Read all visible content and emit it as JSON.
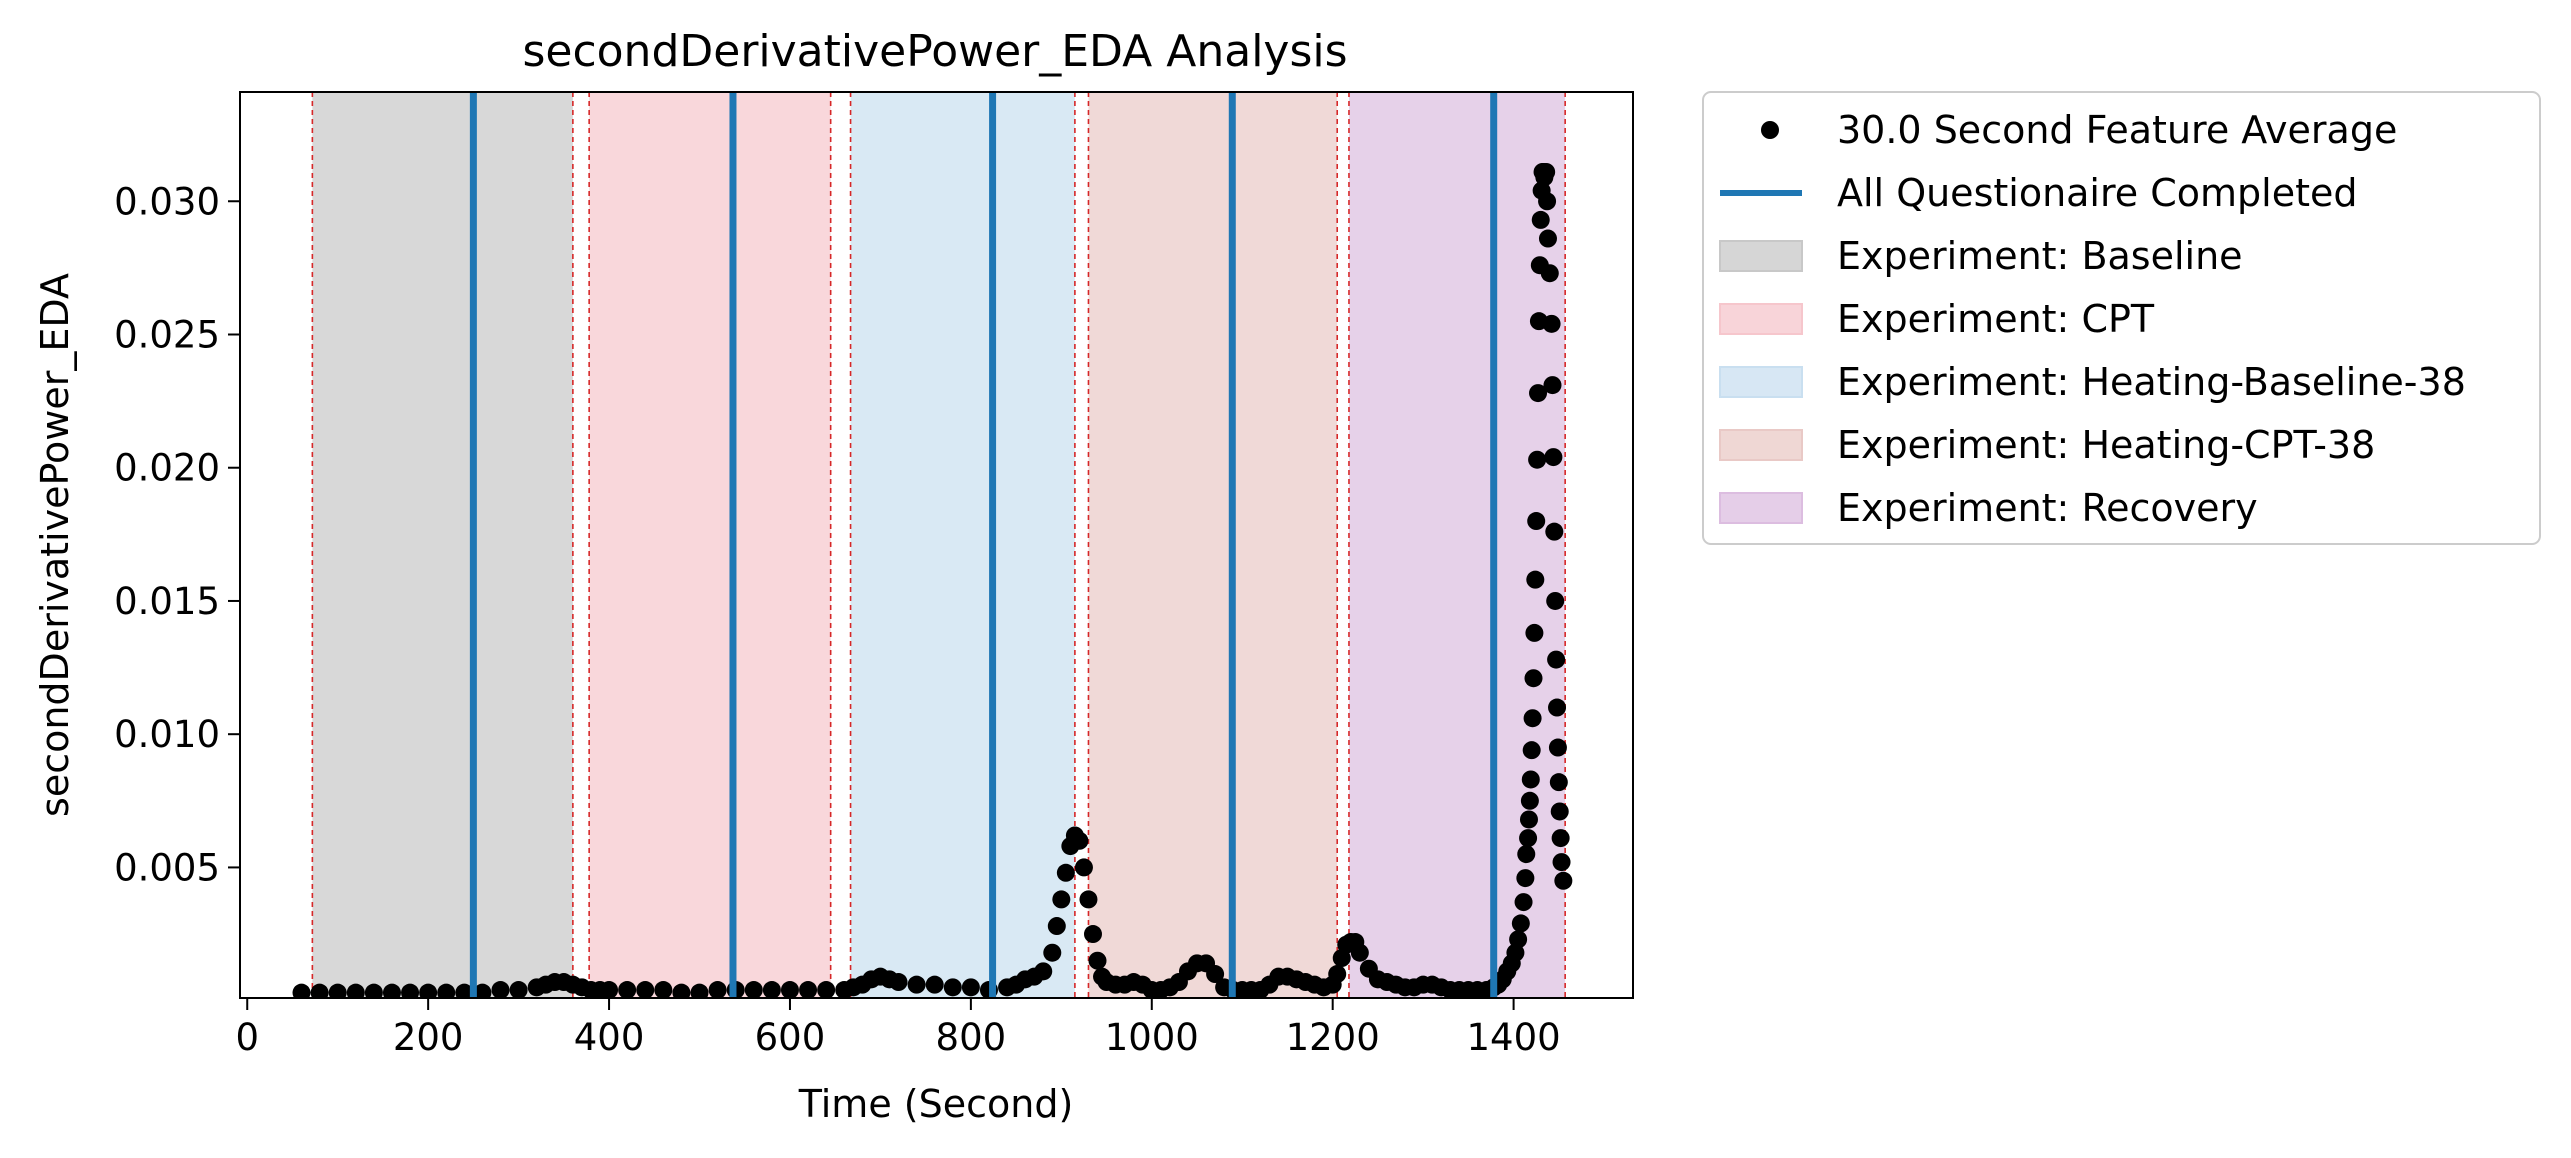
{
  "chart_data": {
    "type": "scatter",
    "title": "secondDerivativePower_EDA Analysis",
    "xlabel": "Time (Second)",
    "ylabel": "secondDerivativePower_EDA",
    "xlim": [
      -8,
      1532
    ],
    "ylim": [
      0.0001,
      0.0341
    ],
    "xticks": [
      0,
      200,
      400,
      600,
      800,
      1000,
      1200,
      1400
    ],
    "yticks": [
      0.005,
      0.01,
      0.015,
      0.02,
      0.025,
      0.03
    ],
    "xtick_labels": [
      "0",
      "200",
      "400",
      "600",
      "800",
      "1000",
      "1200",
      "1400"
    ],
    "ytick_labels": [
      "0.005",
      "0.010",
      "0.015",
      "0.020",
      "0.025",
      "0.030"
    ],
    "grid": false,
    "legend_position": "outside-right-top",
    "legend": [
      {
        "label": "30.0 Second Feature Average",
        "kind": "point",
        "color": "#000000"
      },
      {
        "label": "All Questionaire Completed",
        "kind": "line",
        "color": "#1f77b4"
      },
      {
        "label": "Experiment: Baseline",
        "kind": "patch",
        "color": "#c8c8c8"
      },
      {
        "label": "Experiment: CPT",
        "kind": "patch",
        "color": "#f6c6cc"
      },
      {
        "label": "Experiment: Heating-Baseline-38",
        "kind": "patch",
        "color": "#c9dff0"
      },
      {
        "label": "Experiment: Heating-CPT-38",
        "kind": "patch",
        "color": "#e9c9c6"
      },
      {
        "label": "Experiment: Recovery",
        "kind": "patch",
        "color": "#dcbde0"
      }
    ],
    "phases": [
      {
        "name": "Baseline",
        "start": 72,
        "end": 360,
        "color": "#c8c8c8"
      },
      {
        "name": "CPT",
        "start": 378,
        "end": 645,
        "color": "#f6c6cc"
      },
      {
        "name": "Heating-Baseline-38",
        "start": 667,
        "end": 915,
        "color": "#c9dff0"
      },
      {
        "name": "Heating-CPT-38",
        "start": 930,
        "end": 1205,
        "color": "#e9c9c6"
      },
      {
        "name": "Recovery",
        "start": 1218,
        "end": 1457,
        "color": "#dcbde0"
      }
    ],
    "phase_boundaries": [
      72,
      360,
      378,
      645,
      667,
      915,
      930,
      1205,
      1218,
      1457
    ],
    "questionnaire_completed": [
      250,
      537,
      824,
      1089,
      1378
    ],
    "series": [
      {
        "name": "30.0 Second Feature Average",
        "color": "#000000",
        "points": [
          [
            60,
            0.0003
          ],
          [
            80,
            0.0003
          ],
          [
            100,
            0.0003
          ],
          [
            120,
            0.0003
          ],
          [
            140,
            0.0003
          ],
          [
            160,
            0.0003
          ],
          [
            180,
            0.0003
          ],
          [
            200,
            0.0003
          ],
          [
            220,
            0.0003
          ],
          [
            240,
            0.0003
          ],
          [
            260,
            0.0003
          ],
          [
            280,
            0.0004
          ],
          [
            300,
            0.0004
          ],
          [
            320,
            0.0005
          ],
          [
            330,
            0.0006
          ],
          [
            340,
            0.0007
          ],
          [
            350,
            0.0007
          ],
          [
            360,
            0.0006
          ],
          [
            370,
            0.0005
          ],
          [
            380,
            0.0004
          ],
          [
            390,
            0.0004
          ],
          [
            400,
            0.0004
          ],
          [
            420,
            0.0004
          ],
          [
            440,
            0.0004
          ],
          [
            460,
            0.0004
          ],
          [
            480,
            0.0003
          ],
          [
            500,
            0.0003
          ],
          [
            520,
            0.0004
          ],
          [
            540,
            0.0004
          ],
          [
            560,
            0.0004
          ],
          [
            580,
            0.0004
          ],
          [
            600,
            0.0004
          ],
          [
            620,
            0.0004
          ],
          [
            640,
            0.0004
          ],
          [
            660,
            0.0004
          ],
          [
            670,
            0.0005
          ],
          [
            680,
            0.0006
          ],
          [
            690,
            0.0008
          ],
          [
            700,
            0.0009
          ],
          [
            710,
            0.0008
          ],
          [
            720,
            0.0007
          ],
          [
            740,
            0.0006
          ],
          [
            760,
            0.0006
          ],
          [
            780,
            0.0005
          ],
          [
            800,
            0.0005
          ],
          [
            820,
            0.0004
          ],
          [
            840,
            0.0005
          ],
          [
            850,
            0.0006
          ],
          [
            860,
            0.0008
          ],
          [
            870,
            0.0009
          ],
          [
            880,
            0.0011
          ],
          [
            890,
            0.0018
          ],
          [
            895,
            0.0028
          ],
          [
            900,
            0.0038
          ],
          [
            905,
            0.0048
          ],
          [
            910,
            0.0058
          ],
          [
            915,
            0.0062
          ],
          [
            920,
            0.006
          ],
          [
            925,
            0.005
          ],
          [
            930,
            0.0038
          ],
          [
            935,
            0.0025
          ],
          [
            940,
            0.0015
          ],
          [
            945,
            0.0009
          ],
          [
            950,
            0.0007
          ],
          [
            960,
            0.0006
          ],
          [
            970,
            0.0006
          ],
          [
            980,
            0.0007
          ],
          [
            990,
            0.0006
          ],
          [
            1000,
            0.0004
          ],
          [
            1010,
            0.0004
          ],
          [
            1020,
            0.0005
          ],
          [
            1030,
            0.0007
          ],
          [
            1040,
            0.0011
          ],
          [
            1050,
            0.0014
          ],
          [
            1060,
            0.0014
          ],
          [
            1070,
            0.001
          ],
          [
            1080,
            0.0005
          ],
          [
            1090,
            0.0004
          ],
          [
            1100,
            0.0004
          ],
          [
            1110,
            0.0004
          ],
          [
            1120,
            0.0004
          ],
          [
            1130,
            0.0006
          ],
          [
            1140,
            0.0009
          ],
          [
            1150,
            0.0009
          ],
          [
            1160,
            0.0008
          ],
          [
            1170,
            0.0007
          ],
          [
            1180,
            0.0006
          ],
          [
            1190,
            0.0005
          ],
          [
            1200,
            0.0006
          ],
          [
            1205,
            0.001
          ],
          [
            1210,
            0.0016
          ],
          [
            1215,
            0.0021
          ],
          [
            1220,
            0.0022
          ],
          [
            1225,
            0.0022
          ],
          [
            1230,
            0.0018
          ],
          [
            1240,
            0.0012
          ],
          [
            1250,
            0.0008
          ],
          [
            1260,
            0.0007
          ],
          [
            1270,
            0.0006
          ],
          [
            1280,
            0.0005
          ],
          [
            1290,
            0.0005
          ],
          [
            1300,
            0.0006
          ],
          [
            1310,
            0.0006
          ],
          [
            1320,
            0.0005
          ],
          [
            1330,
            0.0004
          ],
          [
            1340,
            0.0004
          ],
          [
            1350,
            0.0004
          ],
          [
            1360,
            0.0004
          ],
          [
            1370,
            0.0004
          ],
          [
            1378,
            0.0005
          ],
          [
            1383,
            0.0006
          ],
          [
            1388,
            0.0008
          ],
          [
            1393,
            0.0011
          ],
          [
            1398,
            0.0014
          ],
          [
            1402,
            0.0018
          ],
          [
            1405,
            0.0023
          ],
          [
            1408,
            0.0029
          ],
          [
            1411,
            0.0037
          ],
          [
            1413,
            0.0046
          ],
          [
            1414,
            0.0055
          ],
          [
            1416,
            0.0061
          ],
          [
            1417,
            0.0068
          ],
          [
            1418,
            0.0075
          ],
          [
            1419,
            0.0083
          ],
          [
            1420,
            0.0094
          ],
          [
            1421,
            0.0106
          ],
          [
            1422,
            0.0121
          ],
          [
            1423,
            0.0138
          ],
          [
            1424,
            0.0158
          ],
          [
            1425,
            0.018
          ],
          [
            1426,
            0.0203
          ],
          [
            1427,
            0.0228
          ],
          [
            1428,
            0.0255
          ],
          [
            1429,
            0.0276
          ],
          [
            1430,
            0.0293
          ],
          [
            1431,
            0.0304
          ],
          [
            1432,
            0.0311
          ],
          [
            1433,
            0.0311
          ],
          [
            1434,
            0.0309
          ],
          [
            1436,
            0.0311
          ],
          [
            1437,
            0.03
          ],
          [
            1438,
            0.0286
          ],
          [
            1440,
            0.0273
          ],
          [
            1442,
            0.0254
          ],
          [
            1443,
            0.0231
          ],
          [
            1444,
            0.0204
          ],
          [
            1445,
            0.0176
          ],
          [
            1446,
            0.015
          ],
          [
            1447,
            0.0128
          ],
          [
            1448,
            0.011
          ],
          [
            1449,
            0.0095
          ],
          [
            1450,
            0.0082
          ],
          [
            1451,
            0.0071
          ],
          [
            1452,
            0.0061
          ],
          [
            1453,
            0.0052
          ],
          [
            1455,
            0.0045
          ]
        ]
      }
    ]
  }
}
